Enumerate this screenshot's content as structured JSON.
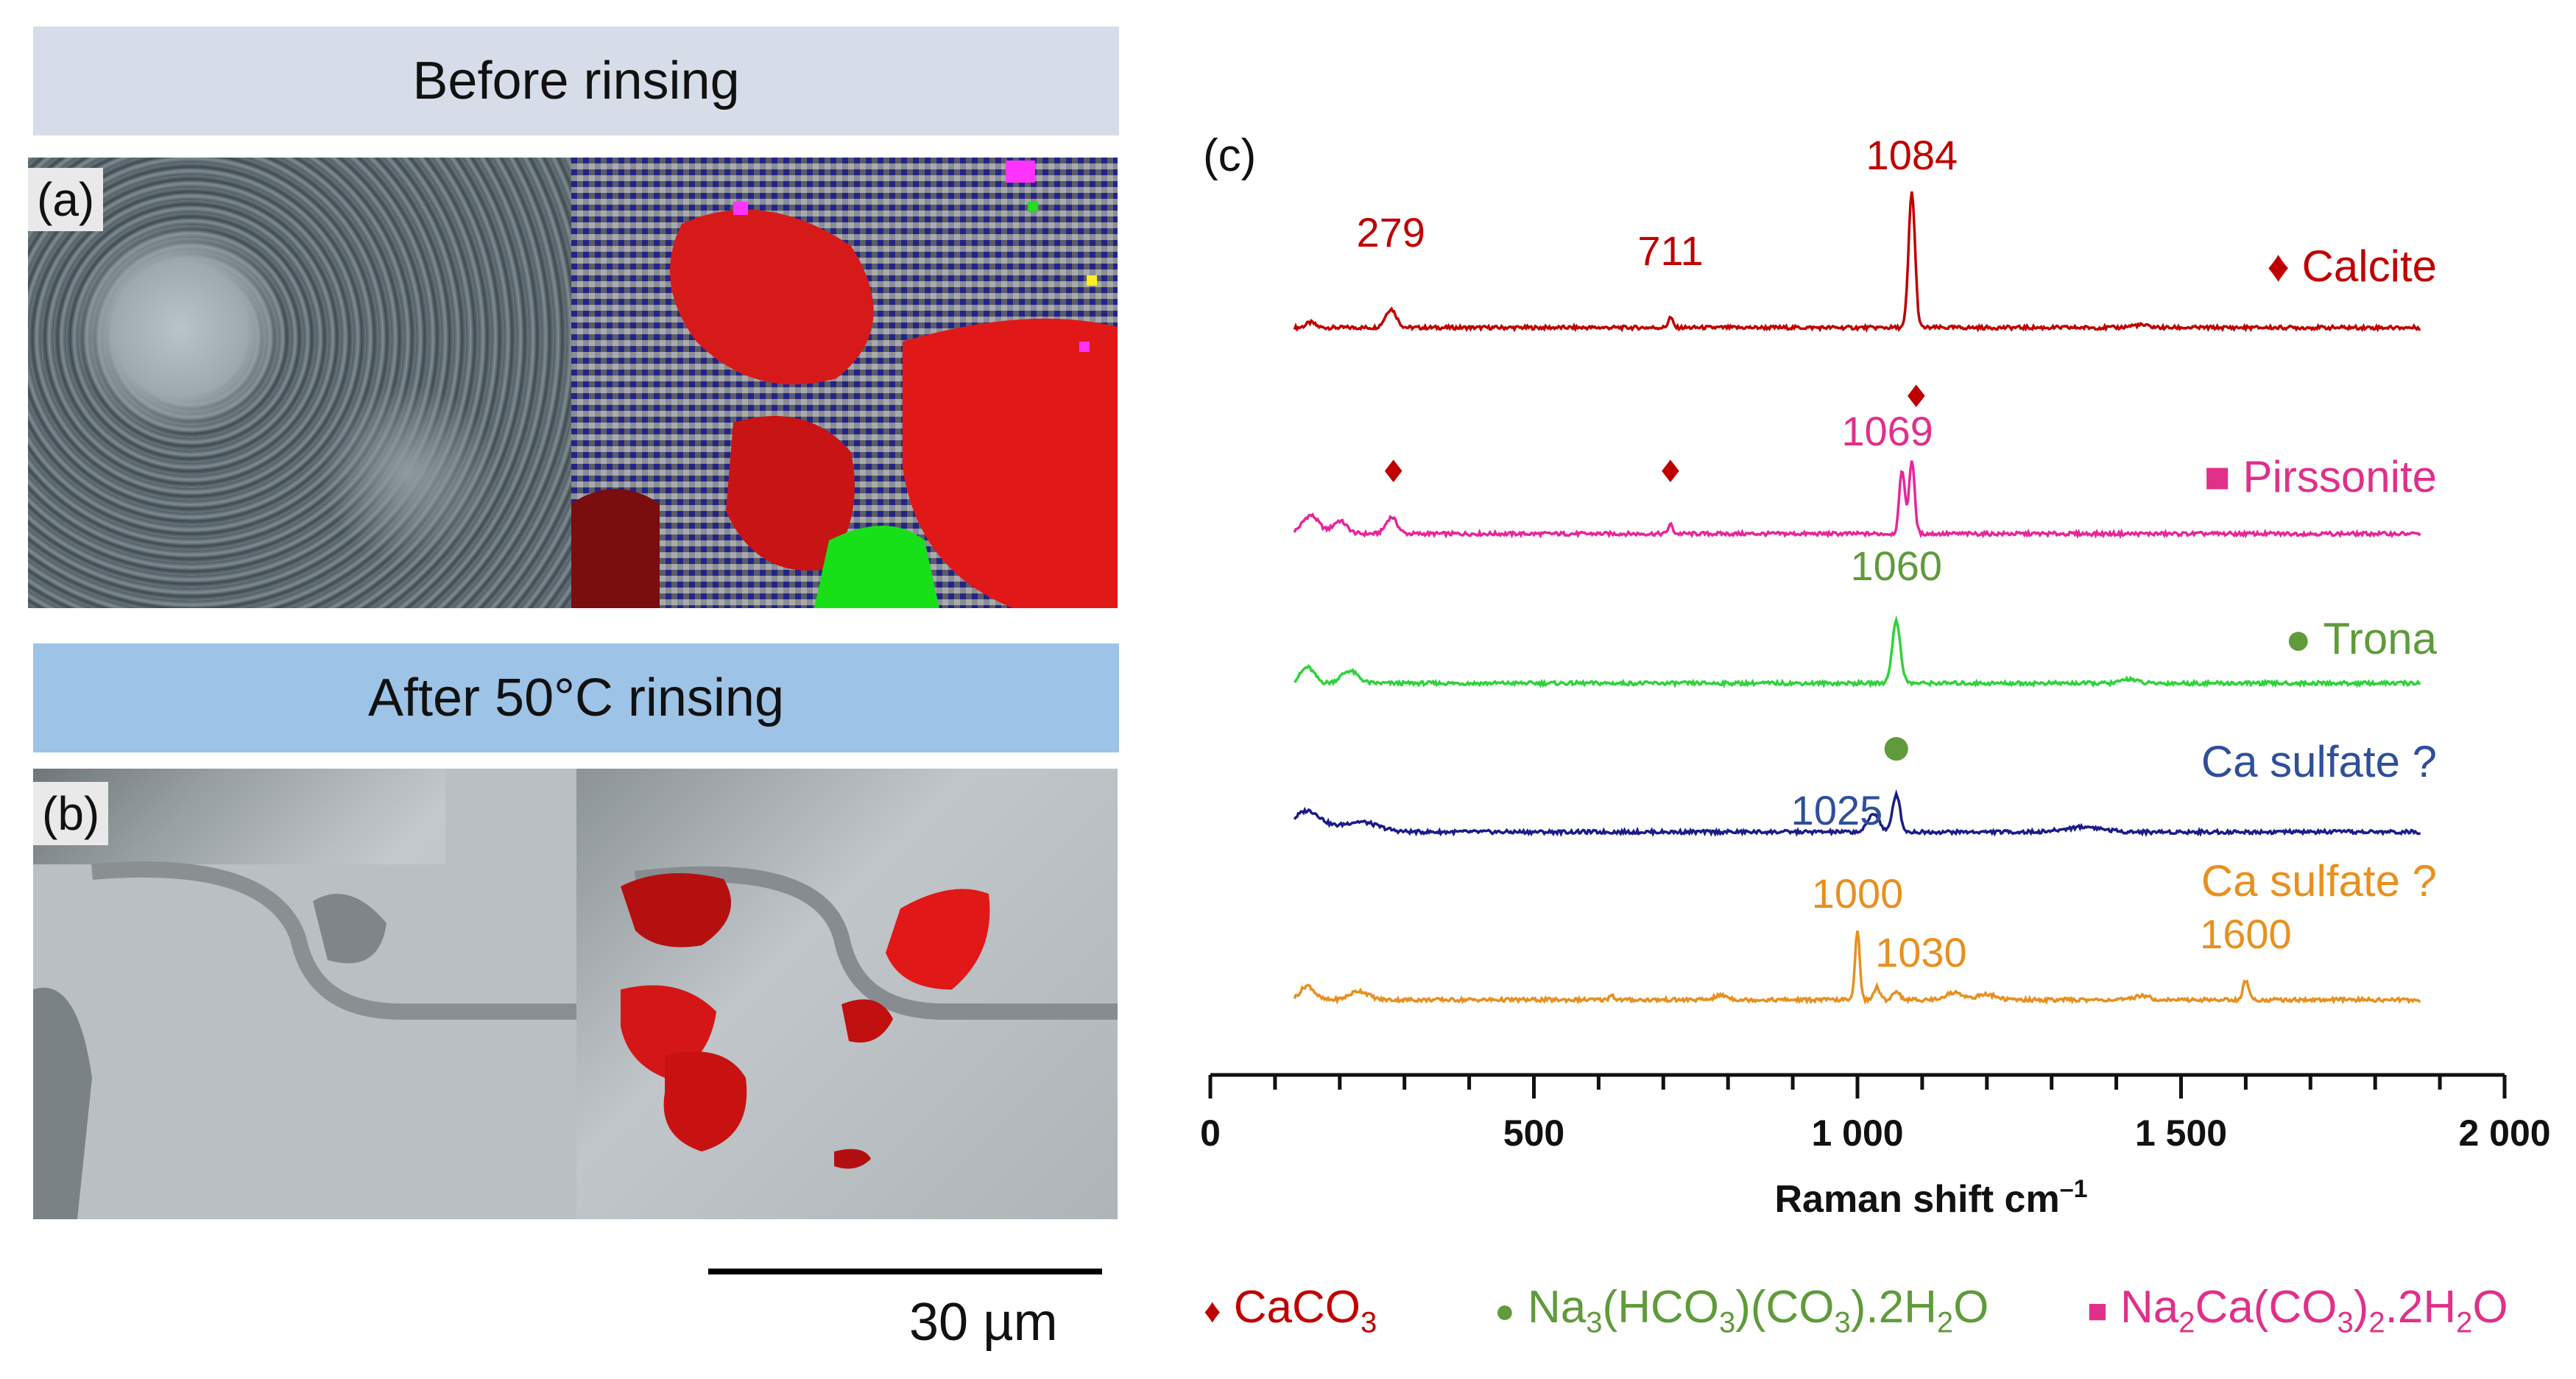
{
  "panels": {
    "a": {
      "banner": "Before rinsing",
      "label": "(a)"
    },
    "b": {
      "banner": "After 50°C rinsing",
      "label": "(b)"
    },
    "scalebar": "30 µm"
  },
  "colors": {
    "calcite": "#c00000",
    "pirssonite": "#e8259b",
    "trona": "#2ed33a",
    "ca_sulfate_1": "#1b1b8a",
    "ca_sulfate_2": "#e8901f",
    "label_calcite": "#c00000",
    "label_pirssonite": "#e0308a",
    "label_trona": "#5f9b3a",
    "label_ca_sulfate_1": "#2f4f99",
    "label_ca_sulfate_2": "#e8901f"
  },
  "chart_data": {
    "panel_label": "(c)",
    "type": "line",
    "xlabel": "Raman shift cm",
    "xlabel_sup": "–1",
    "xlim": [
      0,
      2000
    ],
    "x_ticks": [
      0,
      500,
      1000,
      1500,
      2000
    ],
    "x_tick_labels": [
      "0",
      "500",
      "1 000",
      "1 500",
      "2 000"
    ],
    "series": [
      {
        "name": "Calcite",
        "marker": "♦",
        "baseline": 0,
        "peaks": [
          [
            155,
            6,
            10
          ],
          [
            279,
            22,
            12
          ],
          [
            711,
            12,
            5
          ],
          [
            1084,
            160,
            7
          ],
          [
            1435,
            3,
            20
          ]
        ],
        "annotations": [
          {
            "text": "279",
            "x": 279
          },
          {
            "text": "711",
            "x": 711
          },
          {
            "text": "1084",
            "x": 1084
          }
        ]
      },
      {
        "name": "Pirssonite",
        "marker": "■",
        "baseline": 1,
        "peaks": [
          [
            155,
            20,
            18
          ],
          [
            200,
            14,
            15
          ],
          [
            280,
            18,
            12
          ],
          [
            711,
            10,
            5
          ],
          [
            1069,
            70,
            6
          ],
          [
            1084,
            80,
            6
          ]
        ],
        "annotations": [
          {
            "text": "1069",
            "x": 1069
          }
        ],
        "markers": [
          {
            "x": 283,
            "symbol": "♦"
          },
          {
            "x": 711,
            "symbol": "♦"
          },
          {
            "x": 1084,
            "symbol": "♦"
          }
        ]
      },
      {
        "name": "Trona",
        "marker": "●",
        "baseline": 2,
        "peaks": [
          [
            150,
            18,
            15
          ],
          [
            215,
            14,
            18
          ],
          [
            1060,
            70,
            9
          ],
          [
            1420,
            5,
            15
          ]
        ],
        "annotations": [
          {
            "text": "1060",
            "x": 1060
          }
        ]
      },
      {
        "name": "Ca sulfate ?",
        "marker": "",
        "baseline": 3,
        "peaks": [
          [
            150,
            25,
            30
          ],
          [
            230,
            12,
            40
          ],
          [
            1025,
            22,
            12
          ],
          [
            1060,
            45,
            8
          ],
          [
            1350,
            6,
            40
          ]
        ],
        "annotations": [
          {
            "text": "1025",
            "x": 1025
          }
        ],
        "markers": [
          {
            "x": 1060,
            "symbol": "●"
          }
        ]
      },
      {
        "name": "Ca sulfate ?",
        "marker": "",
        "baseline": 4,
        "peaks": [
          [
            150,
            16,
            15
          ],
          [
            230,
            10,
            20
          ],
          [
            620,
            6,
            5
          ],
          [
            790,
            5,
            15
          ],
          [
            1000,
            80,
            5
          ],
          [
            1030,
            15,
            6
          ],
          [
            1060,
            10,
            8
          ],
          [
            1150,
            8,
            20
          ],
          [
            1200,
            6,
            20
          ],
          [
            1440,
            5,
            15
          ],
          [
            1600,
            22,
            6
          ]
        ],
        "annotations": [
          {
            "text": "1000",
            "x": 1000
          },
          {
            "text": "1030",
            "x": 1030
          },
          {
            "text": "1600",
            "x": 1600
          }
        ]
      }
    ]
  },
  "legend": {
    "caco3": {
      "symbol": "♦",
      "text": "CaCO",
      "sub": "3"
    },
    "trona": {
      "symbol": "●",
      "t1": "Na",
      "s1": "3",
      "t2": "(HCO",
      "s2": "3",
      "t3": ")(CO",
      "s3": "3",
      "t4": ").2H",
      "s4": "2",
      "t5": "O"
    },
    "pirssonite": {
      "symbol": "■",
      "t1": "Na",
      "s1": "2",
      "t2": "Ca(CO",
      "s2": "3",
      "t3": ")",
      "s3": "2",
      "t4": ".2H",
      "s4": "2",
      "t5": "O"
    }
  }
}
